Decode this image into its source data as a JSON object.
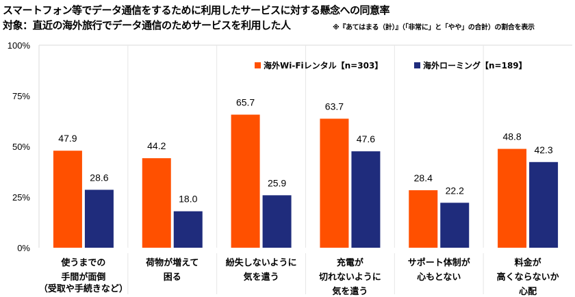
{
  "chart_data": {
    "type": "bar",
    "title": "スマートフォン等でデータ通信をするために利用したサービスに対する懸念への同意率",
    "subtitle": "対象：直近の海外旅行でデータ通信のためサービスを利用した人",
    "note": "※『あてはまる（計）』（「非常に」と「やや」の合計）の割合を表示",
    "categories": [
      [
        "使うまでの",
        "手間が面倒",
        "（受取や手続きなど）"
      ],
      [
        "荷物が増えて",
        "困る"
      ],
      [
        "紛失しないように",
        "気を遣う"
      ],
      [
        "充電が",
        "切れないように",
        "気を遣う"
      ],
      [
        "サポート体制が",
        "心もとない"
      ],
      [
        "料金が",
        "高くならないか",
        "心配"
      ]
    ],
    "series": [
      {
        "name": "海外Wi-Fiレンタル【n=303】",
        "color": "#FF5000",
        "values": [
          47.9,
          44.2,
          65.7,
          63.7,
          28.4,
          48.8
        ]
      },
      {
        "name": "海外ローミング【n=189】",
        "color": "#1F2C7C",
        "values": [
          28.6,
          18.0,
          25.9,
          47.6,
          22.2,
          42.3
        ]
      }
    ],
    "yticks": [
      "0%",
      "25%",
      "50%",
      "75%",
      "100%"
    ],
    "ylim": [
      0,
      100
    ],
    "legend": "top-right",
    "xlabel": "",
    "ylabel": ""
  }
}
